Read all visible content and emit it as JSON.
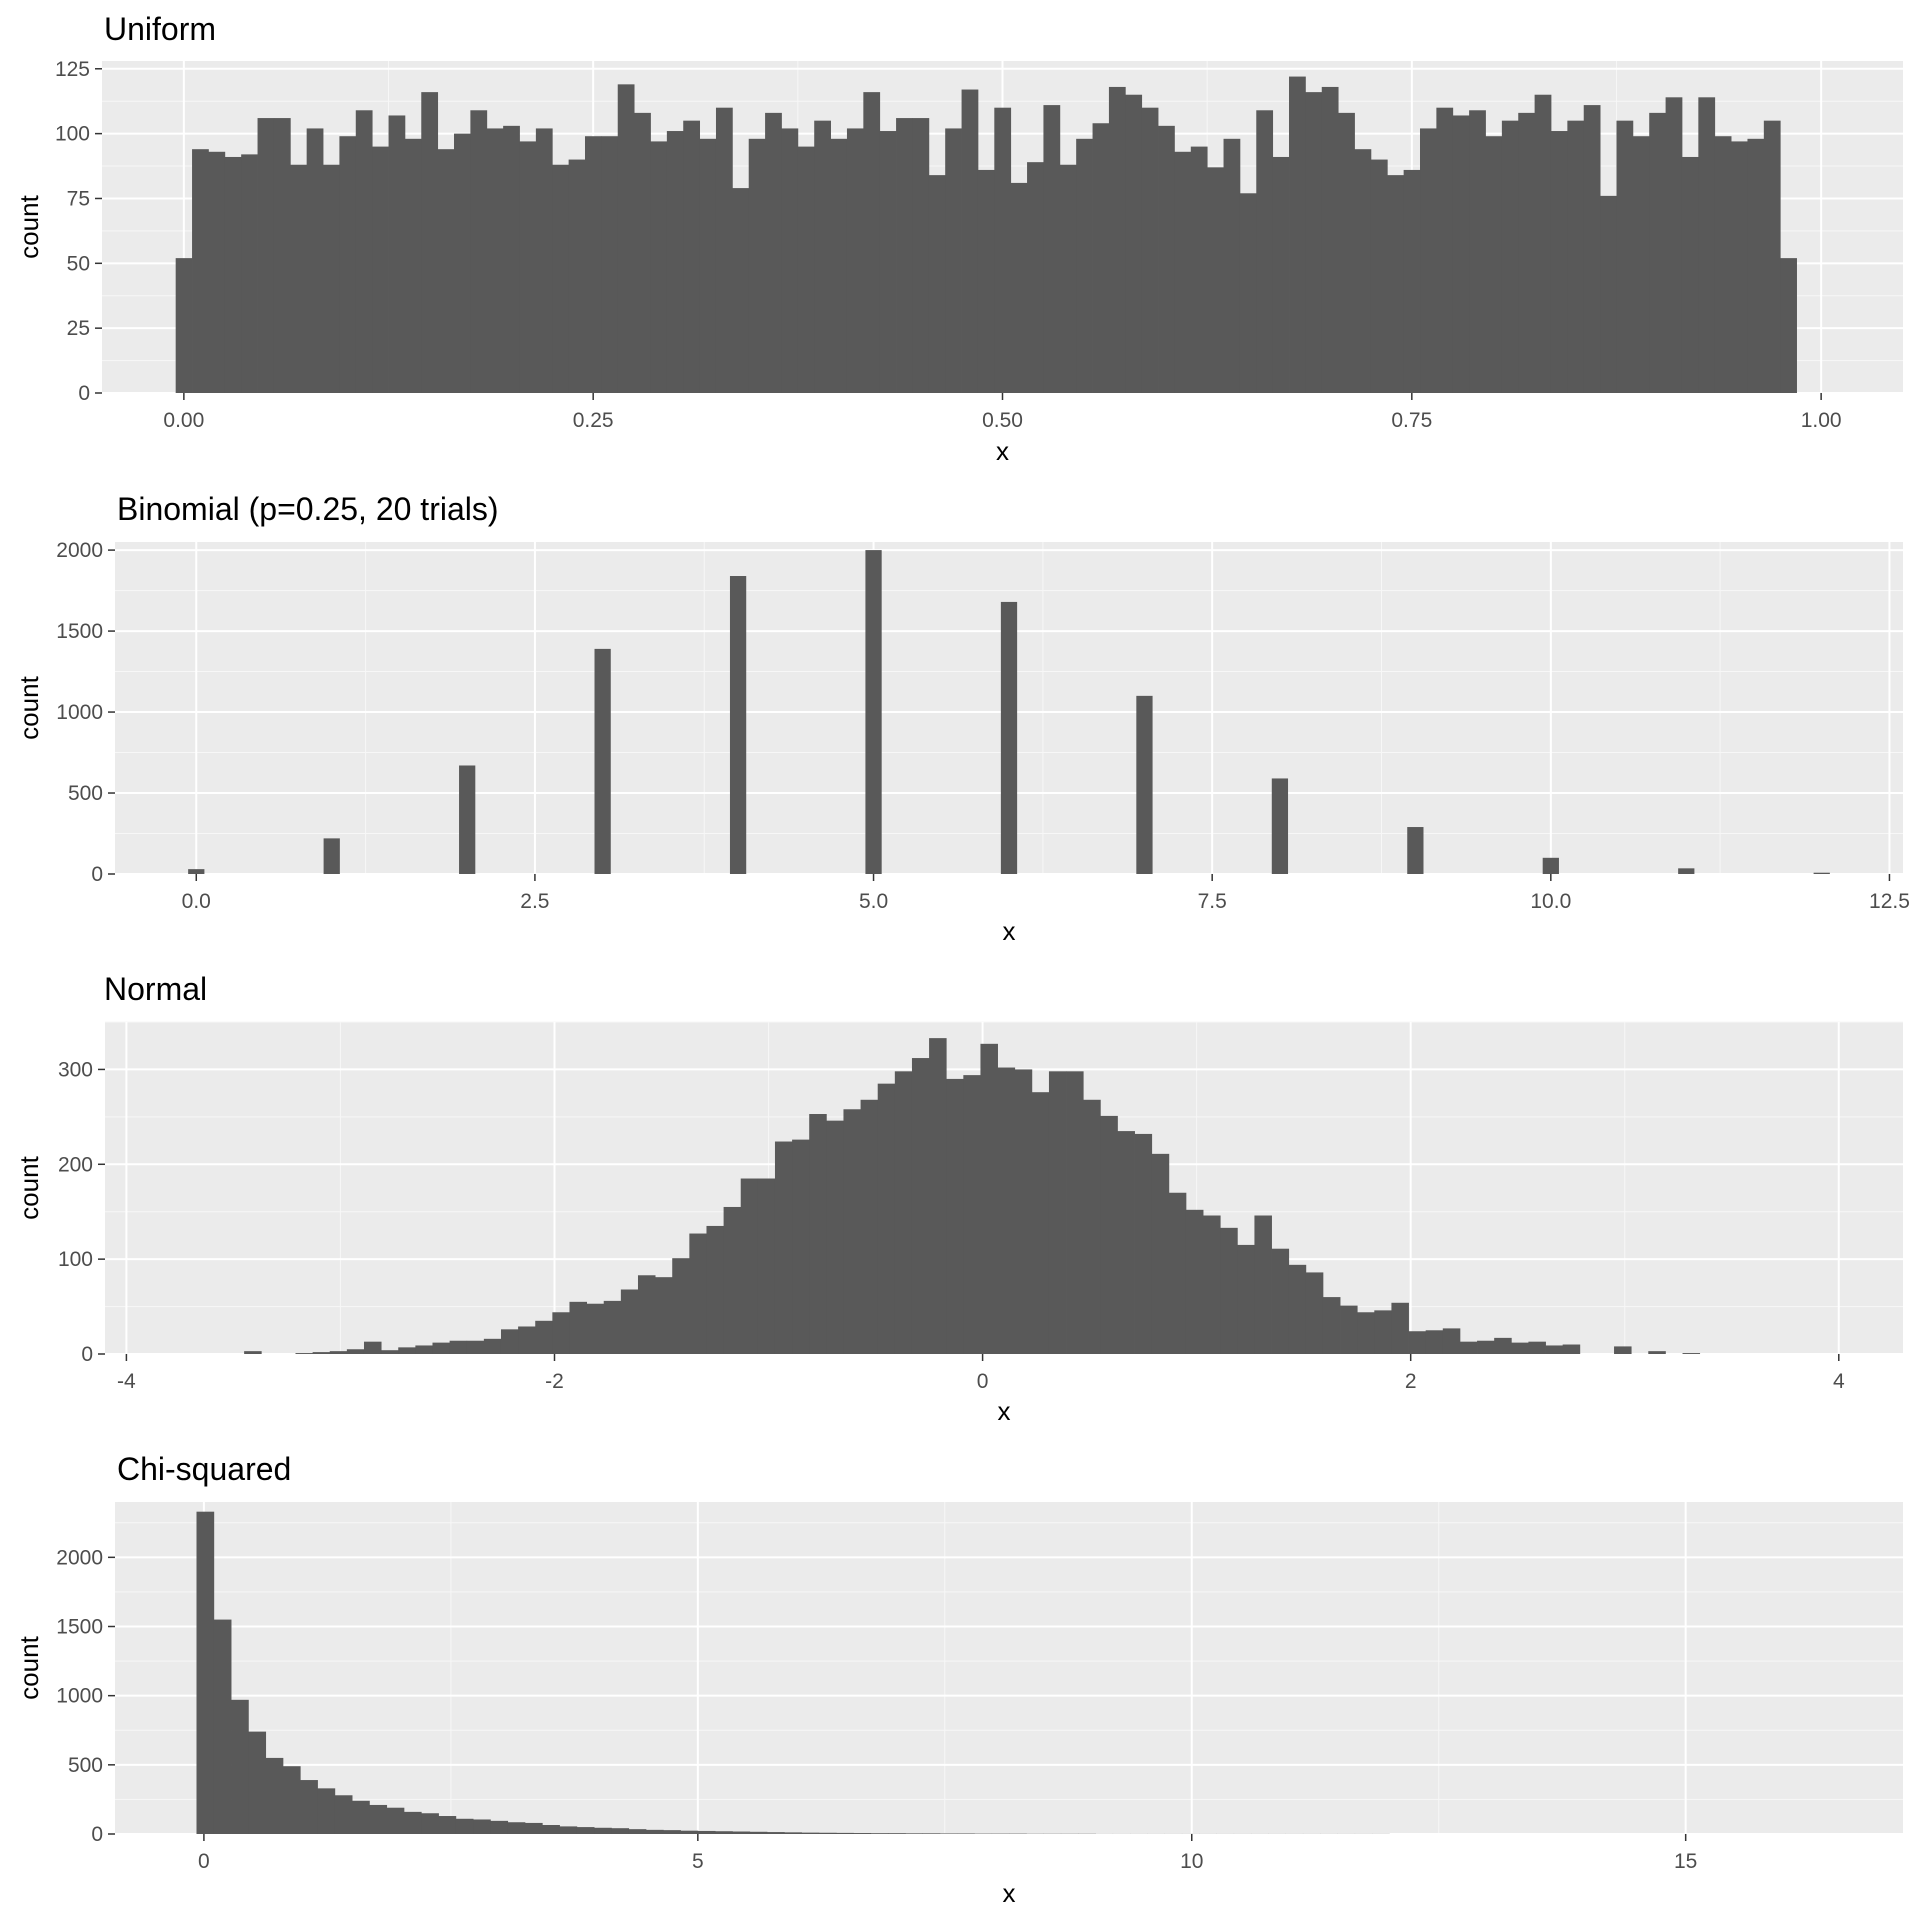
{
  "chart_data": [
    {
      "type": "histogram",
      "title": "Uniform",
      "xlabel": "x",
      "ylabel": "count",
      "xlim": [
        -0.05,
        1.05
      ],
      "ylim": [
        0,
        128
      ],
      "x_ticks": [
        0.0,
        0.25,
        0.5,
        0.75,
        1.0
      ],
      "x_tick_labels": [
        "0.00",
        "0.25",
        "0.50",
        "0.75",
        "1.00"
      ],
      "y_ticks": [
        0,
        25,
        50,
        75,
        100,
        125
      ],
      "y_tick_labels": [
        "0",
        "25",
        "50",
        "75",
        "100",
        "125"
      ],
      "grid": true,
      "bin_start": -0.005,
      "bin_width": 0.01,
      "values": [
        52,
        94,
        93,
        91,
        92,
        106,
        106,
        88,
        102,
        88,
        99,
        109,
        95,
        107,
        98,
        116,
        94,
        100,
        109,
        102,
        103,
        97,
        102,
        88,
        90,
        99,
        99,
        119,
        108,
        97,
        101,
        105,
        98,
        110,
        79,
        98,
        108,
        102,
        95,
        105,
        98,
        102,
        116,
        101,
        106,
        106,
        84,
        102,
        117,
        86,
        110,
        81,
        89,
        111,
        88,
        98,
        104,
        118,
        115,
        110,
        103,
        93,
        95,
        87,
        98,
        77,
        109,
        91,
        122,
        116,
        118,
        108,
        94,
        90,
        84,
        86,
        102,
        110,
        107,
        109,
        99,
        105,
        108,
        115,
        101,
        105,
        111,
        76,
        105,
        99,
        108,
        114,
        91,
        114,
        99,
        97,
        98,
        105,
        52
      ]
    },
    {
      "type": "histogram",
      "title": "Binomial (p=0.25, 20 trials)",
      "xlabel": "x",
      "ylabel": "count",
      "xlim": [
        -0.6,
        12.6
      ],
      "ylim": [
        0,
        2050
      ],
      "x_ticks": [
        0.0,
        2.5,
        5.0,
        7.5,
        10.0,
        12.5
      ],
      "x_tick_labels": [
        "0.0",
        "2.5",
        "5.0",
        "7.5",
        "10.0",
        "12.5"
      ],
      "y_ticks": [
        0,
        500,
        1000,
        1500,
        2000
      ],
      "y_tick_labels": [
        "0",
        "500",
        "1000",
        "1500",
        "2000"
      ],
      "grid": true,
      "bar_width": 0.12,
      "x": [
        0,
        1,
        2,
        3,
        4,
        5,
        6,
        7,
        8,
        9,
        10,
        11,
        12
      ],
      "values": [
        30,
        220,
        670,
        1390,
        1840,
        2000,
        1680,
        1100,
        590,
        290,
        100,
        35,
        8
      ]
    },
    {
      "type": "histogram",
      "title": "Normal",
      "xlabel": "x",
      "ylabel": "count",
      "xlim": [
        -4.1,
        4.3
      ],
      "ylim": [
        0,
        350
      ],
      "x_ticks": [
        -4,
        -2,
        0,
        2,
        4
      ],
      "x_tick_labels": [
        "-4",
        "-2",
        "0",
        "2",
        "4"
      ],
      "y_ticks": [
        0,
        100,
        200,
        300
      ],
      "y_tick_labels": [
        "0",
        "100",
        "200",
        "300"
      ],
      "grid": true,
      "bin_start": -3.45,
      "bin_width": 0.08,
      "values": [
        3,
        0,
        0,
        1,
        2,
        3,
        5,
        13,
        4,
        7,
        9,
        12,
        14,
        14,
        16,
        26,
        29,
        35,
        44,
        55,
        53,
        56,
        68,
        83,
        81,
        101,
        127,
        135,
        155,
        185,
        185,
        224,
        226,
        253,
        246,
        258,
        268,
        285,
        298,
        312,
        333,
        290,
        294,
        327,
        302,
        300,
        276,
        298,
        298,
        268,
        251,
        235,
        232,
        211,
        170,
        152,
        146,
        133,
        115,
        146,
        111,
        94,
        86,
        60,
        51,
        44,
        46,
        54,
        24,
        25,
        27,
        13,
        14,
        17,
        12,
        13,
        9,
        10,
        0,
        0,
        8,
        0,
        3,
        0,
        1
      ]
    },
    {
      "type": "histogram",
      "title": "Chi-squared",
      "xlabel": "x",
      "ylabel": "count",
      "xlim": [
        -0.9,
        17.2
      ],
      "ylim": [
        0,
        2400
      ],
      "x_ticks": [
        0,
        5,
        10,
        15
      ],
      "x_tick_labels": [
        "0",
        "5",
        "10",
        "15"
      ],
      "y_ticks": [
        0,
        500,
        1000,
        1500,
        2000
      ],
      "y_tick_labels": [
        "0",
        "500",
        "1000",
        "1500",
        "2000"
      ],
      "grid": true,
      "bin_start": -0.075,
      "bin_width": 0.175,
      "values": [
        2330,
        1550,
        970,
        740,
        550,
        490,
        390,
        330,
        280,
        240,
        210,
        190,
        160,
        150,
        130,
        110,
        105,
        95,
        85,
        80,
        65,
        55,
        50,
        45,
        42,
        35,
        30,
        28,
        24,
        22,
        20,
        18,
        16,
        14,
        12,
        10,
        9,
        8,
        7,
        6,
        6,
        5,
        5,
        4,
        4,
        3,
        3,
        3,
        2,
        2,
        2,
        2,
        1,
        1,
        1,
        1,
        1,
        1,
        1,
        1,
        1,
        1,
        1,
        1,
        1,
        1,
        1,
        1,
        1
      ]
    }
  ]
}
